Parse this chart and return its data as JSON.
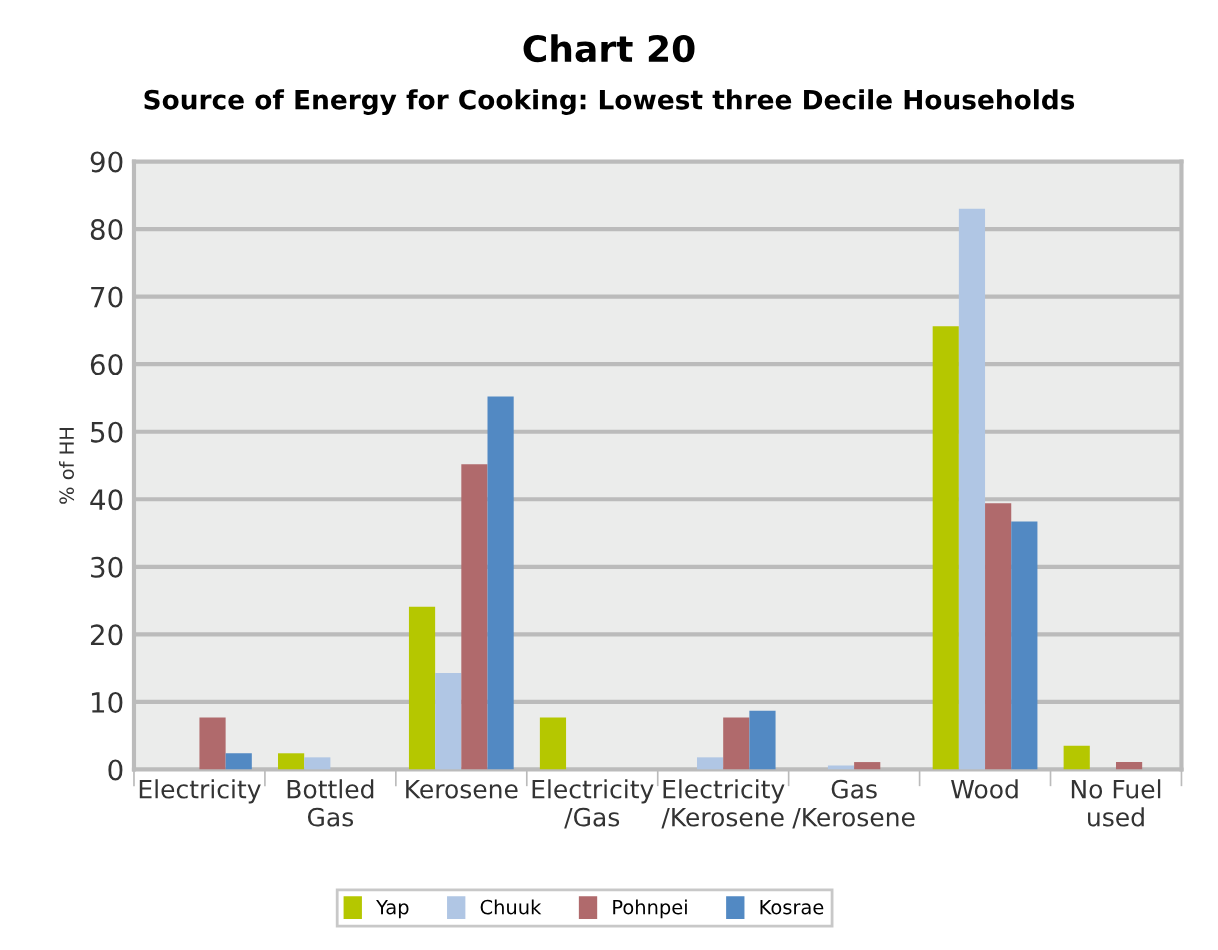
{
  "chart_data": {
    "type": "bar",
    "title": "Chart 20",
    "subtitle": "Source of Energy for Cooking: Lowest three Decile Households",
    "ylabel": "% of HH",
    "categories": [
      "Electricity",
      "Bottled\nGas",
      "Kerosene",
      "Electricity\n/Gas",
      "Electricity\n/Kerosene",
      "Gas\n/Kerosene",
      "Wood",
      "No Fuel\nused"
    ],
    "series": [
      {
        "name": "Yap",
        "color": "#b5c700",
        "values": [
          0,
          2.4,
          24.1,
          7.7,
          0,
          0,
          65.6,
          3.5
        ]
      },
      {
        "name": "Chuuk",
        "color": "#b0c6e4",
        "values": [
          0,
          1.8,
          14.3,
          0,
          1.8,
          0.6,
          83,
          0
        ]
      },
      {
        "name": "Pohnpei",
        "color": "#b06a6c",
        "values": [
          7.7,
          0,
          45.2,
          0,
          7.7,
          1.1,
          39.4,
          1.1
        ]
      },
      {
        "name": "Kosrae",
        "color": "#5289c3",
        "values": [
          2.4,
          0,
          55.2,
          0,
          8.7,
          0,
          36.7,
          0
        ]
      }
    ],
    "ylim": [
      0,
      90
    ],
    "yticks": [
      0,
      10,
      20,
      30,
      40,
      50,
      60,
      70,
      80,
      90
    ],
    "grid": "y",
    "legend": "bottom"
  }
}
